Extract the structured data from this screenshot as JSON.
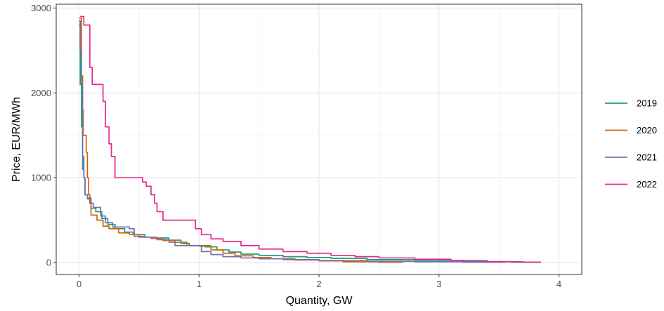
{
  "chart_data": {
    "type": "line",
    "xlabel": "Quantity, GW",
    "ylabel": "Price, EUR/MWh",
    "xlim": [
      -0.19,
      4.19
    ],
    "ylim": [
      -140,
      3045
    ],
    "x_ticks": [
      0,
      1,
      2,
      3,
      4
    ],
    "x_tick_labels": [
      "0",
      "1",
      "2",
      "3",
      "4"
    ],
    "y_ticks": [
      0,
      1000,
      2000,
      3000
    ],
    "y_tick_labels": [
      "0",
      "1000",
      "2000",
      "3000"
    ],
    "grid": true,
    "legend_position": "right",
    "series": [
      {
        "name": "2019",
        "color": "#1b9e77",
        "points": [
          [
            0.0,
            2850
          ],
          [
            0.01,
            2850
          ],
          [
            0.01,
            2100
          ],
          [
            0.02,
            2100
          ],
          [
            0.02,
            1600
          ],
          [
            0.03,
            1600
          ],
          [
            0.03,
            1250
          ],
          [
            0.04,
            1250
          ],
          [
            0.04,
            1000
          ],
          [
            0.05,
            1000
          ],
          [
            0.05,
            800
          ],
          [
            0.07,
            800
          ],
          [
            0.07,
            760
          ],
          [
            0.1,
            760
          ],
          [
            0.1,
            640
          ],
          [
            0.14,
            640
          ],
          [
            0.14,
            600
          ],
          [
            0.19,
            600
          ],
          [
            0.19,
            520
          ],
          [
            0.24,
            520
          ],
          [
            0.24,
            450
          ],
          [
            0.3,
            450
          ],
          [
            0.3,
            400
          ],
          [
            0.38,
            400
          ],
          [
            0.38,
            360
          ],
          [
            0.45,
            360
          ],
          [
            0.45,
            330
          ],
          [
            0.55,
            330
          ],
          [
            0.55,
            300
          ],
          [
            0.65,
            300
          ],
          [
            0.65,
            290
          ],
          [
            0.75,
            290
          ],
          [
            0.75,
            265
          ],
          [
            0.85,
            265
          ],
          [
            0.85,
            225
          ],
          [
            0.92,
            225
          ],
          [
            0.92,
            200
          ],
          [
            1.05,
            200
          ],
          [
            1.05,
            185
          ],
          [
            1.15,
            185
          ],
          [
            1.15,
            150
          ],
          [
            1.25,
            150
          ],
          [
            1.25,
            125
          ],
          [
            1.35,
            125
          ],
          [
            1.35,
            100
          ],
          [
            1.5,
            100
          ],
          [
            1.5,
            85
          ],
          [
            1.7,
            85
          ],
          [
            1.7,
            70
          ],
          [
            1.9,
            70
          ],
          [
            1.9,
            60
          ],
          [
            2.1,
            60
          ],
          [
            2.1,
            50
          ],
          [
            2.4,
            50
          ],
          [
            2.4,
            35
          ],
          [
            2.8,
            35
          ],
          [
            2.8,
            25
          ],
          [
            3.2,
            25
          ],
          [
            3.2,
            12
          ],
          [
            3.6,
            12
          ],
          [
            3.6,
            5
          ],
          [
            3.85,
            5
          ]
        ]
      },
      {
        "name": "2020",
        "color": "#d95f02",
        "points": [
          [
            0.0,
            2880
          ],
          [
            0.02,
            2880
          ],
          [
            0.02,
            2200
          ],
          [
            0.03,
            2200
          ],
          [
            0.03,
            1800
          ],
          [
            0.035,
            1800
          ],
          [
            0.035,
            1500
          ],
          [
            0.06,
            1500
          ],
          [
            0.06,
            1300
          ],
          [
            0.07,
            1300
          ],
          [
            0.07,
            1000
          ],
          [
            0.08,
            1000
          ],
          [
            0.08,
            800
          ],
          [
            0.09,
            800
          ],
          [
            0.09,
            700
          ],
          [
            0.1,
            700
          ],
          [
            0.1,
            560
          ],
          [
            0.15,
            560
          ],
          [
            0.15,
            500
          ],
          [
            0.2,
            500
          ],
          [
            0.2,
            430
          ],
          [
            0.25,
            430
          ],
          [
            0.25,
            400
          ],
          [
            0.33,
            400
          ],
          [
            0.33,
            350
          ],
          [
            0.42,
            350
          ],
          [
            0.42,
            330
          ],
          [
            0.5,
            330
          ],
          [
            0.5,
            300
          ],
          [
            0.6,
            300
          ],
          [
            0.6,
            285
          ],
          [
            0.7,
            285
          ],
          [
            0.7,
            260
          ],
          [
            0.8,
            260
          ],
          [
            0.8,
            240
          ],
          [
            0.9,
            240
          ],
          [
            0.9,
            200
          ],
          [
            1.0,
            200
          ],
          [
            1.0,
            195
          ],
          [
            1.05,
            195
          ],
          [
            1.05,
            200
          ],
          [
            1.1,
            200
          ],
          [
            1.1,
            150
          ],
          [
            1.2,
            150
          ],
          [
            1.2,
            110
          ],
          [
            1.3,
            110
          ],
          [
            1.3,
            80
          ],
          [
            1.45,
            80
          ],
          [
            1.45,
            60
          ],
          [
            1.6,
            60
          ],
          [
            1.6,
            45
          ],
          [
            1.8,
            45
          ],
          [
            1.8,
            30
          ],
          [
            2.0,
            30
          ],
          [
            2.0,
            20
          ],
          [
            2.2,
            20
          ],
          [
            2.2,
            10
          ],
          [
            2.5,
            10
          ],
          [
            2.5,
            5
          ],
          [
            2.7,
            5
          ]
        ]
      },
      {
        "name": "2021",
        "color": "#7570b3",
        "points": [
          [
            0.0,
            2800
          ],
          [
            0.01,
            2800
          ],
          [
            0.01,
            2500
          ],
          [
            0.02,
            2500
          ],
          [
            0.02,
            2100
          ],
          [
            0.03,
            2100
          ],
          [
            0.03,
            1100
          ],
          [
            0.04,
            1100
          ],
          [
            0.04,
            1000
          ],
          [
            0.05,
            1000
          ],
          [
            0.05,
            800
          ],
          [
            0.07,
            800
          ],
          [
            0.07,
            750
          ],
          [
            0.1,
            750
          ],
          [
            0.1,
            700
          ],
          [
            0.12,
            700
          ],
          [
            0.12,
            650
          ],
          [
            0.18,
            650
          ],
          [
            0.18,
            550
          ],
          [
            0.22,
            550
          ],
          [
            0.22,
            470
          ],
          [
            0.28,
            470
          ],
          [
            0.28,
            420
          ],
          [
            0.42,
            420
          ],
          [
            0.42,
            400
          ],
          [
            0.46,
            400
          ],
          [
            0.46,
            310
          ],
          [
            0.55,
            310
          ],
          [
            0.55,
            300
          ],
          [
            0.65,
            300
          ],
          [
            0.65,
            270
          ],
          [
            0.75,
            270
          ],
          [
            0.75,
            240
          ],
          [
            0.8,
            240
          ],
          [
            0.8,
            200
          ],
          [
            1.02,
            200
          ],
          [
            1.02,
            130
          ],
          [
            1.1,
            130
          ],
          [
            1.1,
            95
          ],
          [
            1.2,
            95
          ],
          [
            1.2,
            70
          ],
          [
            1.35,
            70
          ],
          [
            1.35,
            55
          ],
          [
            1.5,
            55
          ],
          [
            1.5,
            45
          ],
          [
            1.7,
            45
          ],
          [
            1.7,
            35
          ],
          [
            2.0,
            35
          ],
          [
            2.0,
            25
          ],
          [
            2.4,
            25
          ],
          [
            2.4,
            15
          ],
          [
            2.8,
            15
          ],
          [
            2.8,
            10
          ],
          [
            3.2,
            10
          ],
          [
            3.2,
            5
          ],
          [
            3.55,
            5
          ]
        ]
      },
      {
        "name": "2022",
        "color": "#e7298a",
        "points": [
          [
            0.01,
            2900
          ],
          [
            0.04,
            2900
          ],
          [
            0.04,
            2800
          ],
          [
            0.09,
            2800
          ],
          [
            0.09,
            2300
          ],
          [
            0.11,
            2300
          ],
          [
            0.11,
            2100
          ],
          [
            0.2,
            2100
          ],
          [
            0.2,
            1900
          ],
          [
            0.22,
            1900
          ],
          [
            0.22,
            1600
          ],
          [
            0.25,
            1600
          ],
          [
            0.25,
            1400
          ],
          [
            0.27,
            1400
          ],
          [
            0.27,
            1250
          ],
          [
            0.3,
            1250
          ],
          [
            0.3,
            1000
          ],
          [
            0.53,
            1000
          ],
          [
            0.53,
            950
          ],
          [
            0.56,
            950
          ],
          [
            0.56,
            900
          ],
          [
            0.6,
            900
          ],
          [
            0.6,
            800
          ],
          [
            0.63,
            800
          ],
          [
            0.63,
            700
          ],
          [
            0.65,
            700
          ],
          [
            0.65,
            600
          ],
          [
            0.7,
            600
          ],
          [
            0.7,
            500
          ],
          [
            0.97,
            500
          ],
          [
            0.97,
            400
          ],
          [
            1.02,
            400
          ],
          [
            1.02,
            330
          ],
          [
            1.1,
            330
          ],
          [
            1.1,
            280
          ],
          [
            1.2,
            280
          ],
          [
            1.2,
            250
          ],
          [
            1.35,
            250
          ],
          [
            1.35,
            200
          ],
          [
            1.5,
            200
          ],
          [
            1.5,
            160
          ],
          [
            1.7,
            160
          ],
          [
            1.7,
            130
          ],
          [
            1.9,
            130
          ],
          [
            1.9,
            110
          ],
          [
            2.1,
            110
          ],
          [
            2.1,
            85
          ],
          [
            2.3,
            85
          ],
          [
            2.3,
            70
          ],
          [
            2.5,
            70
          ],
          [
            2.5,
            55
          ],
          [
            2.8,
            55
          ],
          [
            2.8,
            40
          ],
          [
            3.1,
            40
          ],
          [
            3.1,
            25
          ],
          [
            3.4,
            25
          ],
          [
            3.4,
            10
          ],
          [
            3.7,
            10
          ],
          [
            3.7,
            5
          ],
          [
            3.85,
            5
          ]
        ]
      }
    ]
  }
}
